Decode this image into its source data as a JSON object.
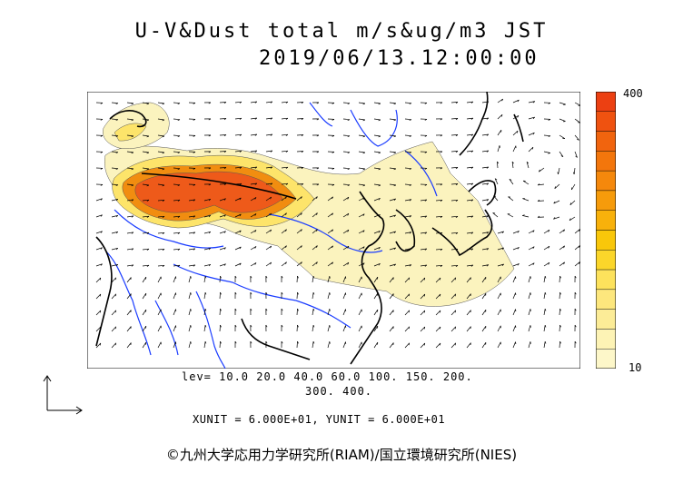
{
  "title": "U-V&Dust total m/s&ug/m3 JST",
  "datetime": "2019/06/13.12:00:00",
  "colorbar": {
    "max_label": "400",
    "min_label": "10",
    "colors": [
      "#fdf7c9",
      "#fdf3b5",
      "#fcec97",
      "#fde77d",
      "#fde25c",
      "#fbd62a",
      "#f9c70a",
      "#f8b10b",
      "#f69b0b",
      "#f5880c",
      "#f3760c",
      "#f1640e",
      "#ef5210",
      "#ec4012"
    ]
  },
  "levels_line1": "lev= 10.0 20.0 40.0 60.0 100. 150. 200.",
  "levels_line2": "300. 400.",
  "units": "XUNIT = 6.000E+01, YUNIT = 6.000E+01",
  "copyright": "©九州大学応用力学研究所(RIAM)/国立環境研究所(NIES)",
  "colors": {
    "dust_light": "#fbf3be",
    "dust_mid": "#fde46a",
    "dust_high": "#f18d10",
    "dust_peak": "#ee5a1a",
    "river": "#1a3cff",
    "coast": "#000000"
  }
}
